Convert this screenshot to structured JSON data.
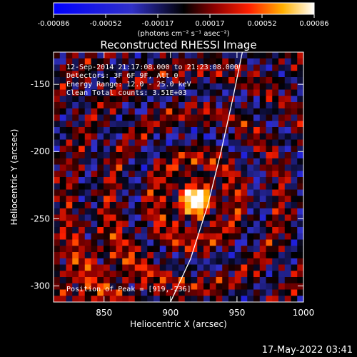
{
  "colorbar": {
    "tick_labels": [
      "-0.00086",
      "-0.00052",
      "-0.00017",
      "0.00017",
      "0.00052",
      "0.00086"
    ],
    "units_label": "(photons cm⁻² s⁻¹ asec⁻²)"
  },
  "chart_data": {
    "type": "heatmap",
    "title": "Reconstructed RHESSI Image",
    "xlabel": "Heliocentric X (arcsec)",
    "ylabel": "Heliocentric Y (arcsec)",
    "xlim": [
      812,
      1000
    ],
    "ylim": [
      -312,
      -126
    ],
    "x_ticks": [
      850,
      900,
      950,
      1000
    ],
    "y_ticks": [
      -150,
      -200,
      -250,
      -300
    ],
    "x_tick_labels": [
      "850",
      "900",
      "950",
      "1000"
    ],
    "y_tick_labels": [
      "-150",
      "-200",
      "-250",
      "-300"
    ],
    "value_range": [
      -0.00086,
      0.00086
    ],
    "colormap": "rhessi-blue-black-red-yellow-white",
    "peak": [
      919,
      -236
    ],
    "limb_curve_x": [
      [
        900,
        -312
      ],
      [
        915,
        -280
      ],
      [
        928,
        -240
      ],
      [
        938,
        -200
      ],
      [
        947,
        -160
      ],
      [
        954,
        -126
      ]
    ]
  },
  "annotations": {
    "time_range": "12-Sep-2014 21:17:08.000 to 21:23:08.000",
    "detectors": "Detectors: 3F 6F 9F, Att 0",
    "energy": "Energy Range: 12.0 - 25.0 keV",
    "clean": "Clean    Total counts: 3.51E+03",
    "peak_position": "Position of Peak = [919,-236]"
  },
  "footer": {
    "date": "17-May-2022 03:41"
  },
  "colors": {
    "background": "#000000",
    "text": "#ffffff"
  }
}
